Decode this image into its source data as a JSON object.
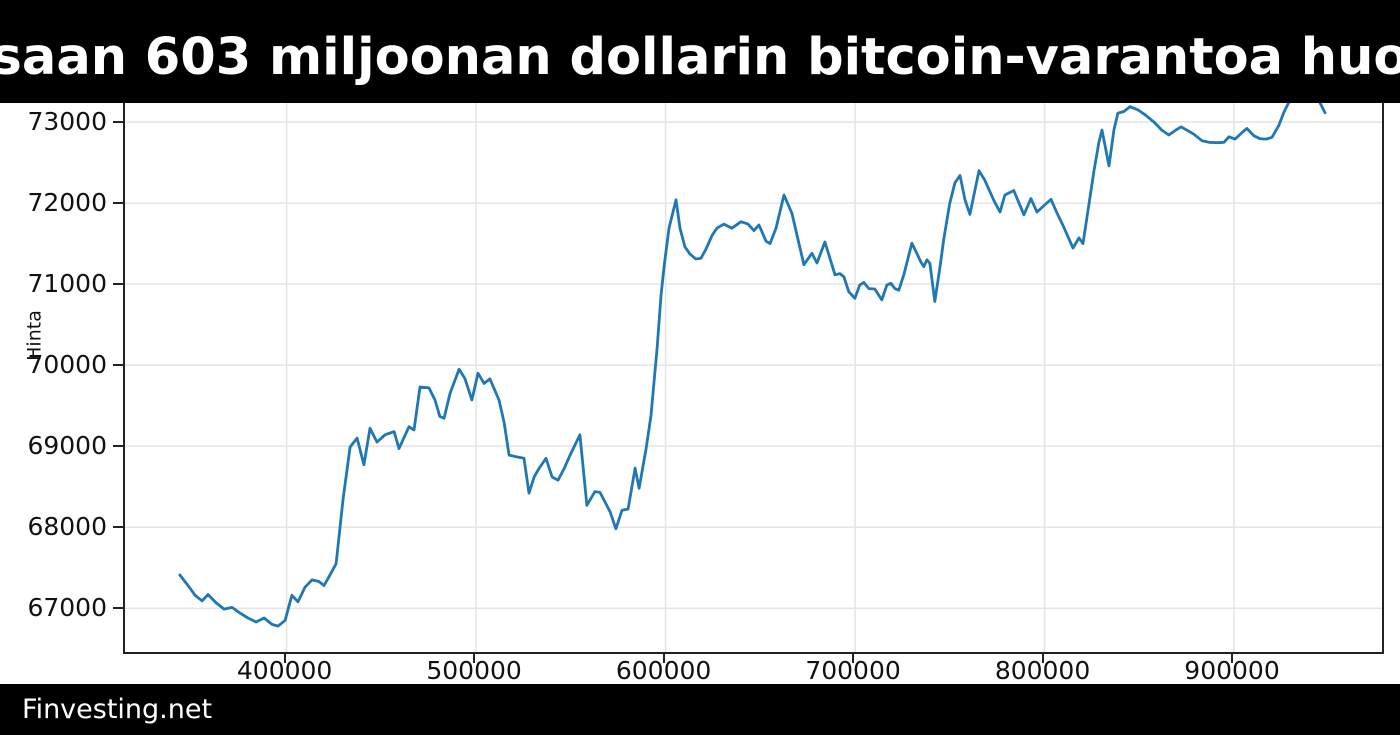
{
  "header": {
    "title": "saan 603 miljoonan dollarin bitcoin-varantoa huo",
    "bg_color": "#000000",
    "text_color": "#ffffff"
  },
  "footer": {
    "brand": "Finvesting.net",
    "bg_color": "#000000",
    "text_color": "#ffffff"
  },
  "chart_data": {
    "type": "line",
    "title": "",
    "xlabel": "",
    "ylabel": "Hinta",
    "grid": true,
    "legend_position": "none",
    "line_color": "#1f77b4",
    "grid_color": "#e4e4e4",
    "axis_color": "#222222",
    "tick_label_color": "#111111",
    "xlim": [
      314700,
      978100
    ],
    "ylim": [
      66460,
      73235
    ],
    "x_ticks": [
      400000,
      500000,
      600000,
      700000,
      800000,
      900000
    ],
    "y_ticks": [
      67000,
      68000,
      69000,
      70000,
      71000,
      72000,
      73000
    ],
    "series": [
      {
        "name": "Hinta",
        "points": [
          [
            343700,
            67410
          ],
          [
            348000,
            67280
          ],
          [
            351700,
            67160
          ],
          [
            355400,
            67090
          ],
          [
            358500,
            67170
          ],
          [
            362700,
            67070
          ],
          [
            367000,
            66990
          ],
          [
            371200,
            67010
          ],
          [
            375400,
            66940
          ],
          [
            379600,
            66880
          ],
          [
            383900,
            66830
          ],
          [
            388100,
            66880
          ],
          [
            392300,
            66800
          ],
          [
            395500,
            66780
          ],
          [
            399200,
            66850
          ],
          [
            402800,
            67160
          ],
          [
            406000,
            67080
          ],
          [
            409700,
            67260
          ],
          [
            413400,
            67350
          ],
          [
            417100,
            67330
          ],
          [
            419700,
            67280
          ],
          [
            422400,
            67390
          ],
          [
            426100,
            67550
          ],
          [
            429800,
            68350
          ],
          [
            433500,
            68990
          ],
          [
            437200,
            69100
          ],
          [
            440800,
            68770
          ],
          [
            444000,
            69220
          ],
          [
            447700,
            69050
          ],
          [
            451900,
            69140
          ],
          [
            456700,
            69180
          ],
          [
            459300,
            68970
          ],
          [
            464600,
            69240
          ],
          [
            467200,
            69200
          ],
          [
            470400,
            69730
          ],
          [
            475100,
            69720
          ],
          [
            478300,
            69570
          ],
          [
            480900,
            69365
          ],
          [
            483100,
            69345
          ],
          [
            486200,
            69650
          ],
          [
            491000,
            69950
          ],
          [
            494100,
            69835
          ],
          [
            497800,
            69570
          ],
          [
            501000,
            69900
          ],
          [
            504200,
            69775
          ],
          [
            507300,
            69830
          ],
          [
            512100,
            69570
          ],
          [
            514700,
            69300
          ],
          [
            517400,
            68890
          ],
          [
            521100,
            68870
          ],
          [
            525300,
            68850
          ],
          [
            527900,
            68420
          ],
          [
            530600,
            68620
          ],
          [
            533200,
            68725
          ],
          [
            536900,
            68850
          ],
          [
            540100,
            68620
          ],
          [
            543200,
            68580
          ],
          [
            546400,
            68720
          ],
          [
            549600,
            68890
          ],
          [
            554800,
            69140
          ],
          [
            558500,
            68270
          ],
          [
            562700,
            68440
          ],
          [
            565400,
            68430
          ],
          [
            570700,
            68190
          ],
          [
            573800,
            67980
          ],
          [
            577000,
            68210
          ],
          [
            580200,
            68225
          ],
          [
            583900,
            68730
          ],
          [
            586000,
            68480
          ],
          [
            589700,
            68970
          ],
          [
            592300,
            69380
          ],
          [
            595500,
            70210
          ],
          [
            597600,
            70860
          ],
          [
            599200,
            71220
          ],
          [
            601800,
            71690
          ],
          [
            605500,
            72040
          ],
          [
            607600,
            71690
          ],
          [
            610200,
            71460
          ],
          [
            612900,
            71370
          ],
          [
            616000,
            71310
          ],
          [
            618700,
            71320
          ],
          [
            621300,
            71430
          ],
          [
            624500,
            71600
          ],
          [
            627100,
            71690
          ],
          [
            630800,
            71740
          ],
          [
            635000,
            71690
          ],
          [
            639800,
            71770
          ],
          [
            643500,
            71740
          ],
          [
            646600,
            71660
          ],
          [
            649300,
            71730
          ],
          [
            653000,
            71530
          ],
          [
            655100,
            71500
          ],
          [
            658300,
            71690
          ],
          [
            662500,
            72100
          ],
          [
            666700,
            71870
          ],
          [
            669900,
            71550
          ],
          [
            673000,
            71240
          ],
          [
            677200,
            71380
          ],
          [
            679900,
            71260
          ],
          [
            684100,
            71520
          ],
          [
            686700,
            71320
          ],
          [
            689400,
            71115
          ],
          [
            692000,
            71130
          ],
          [
            694100,
            71090
          ],
          [
            696700,
            70905
          ],
          [
            699900,
            70825
          ],
          [
            702500,
            70990
          ],
          [
            704600,
            71020
          ],
          [
            707300,
            70945
          ],
          [
            710400,
            70940
          ],
          [
            714100,
            70805
          ],
          [
            716800,
            70990
          ],
          [
            718900,
            71010
          ],
          [
            721000,
            70945
          ],
          [
            723100,
            70925
          ],
          [
            725700,
            71115
          ],
          [
            728400,
            71360
          ],
          [
            730000,
            71505
          ],
          [
            732600,
            71380
          ],
          [
            734700,
            71275
          ],
          [
            736300,
            71215
          ],
          [
            737900,
            71300
          ],
          [
            739500,
            71255
          ],
          [
            742100,
            70785
          ],
          [
            744700,
            71195
          ],
          [
            746900,
            71565
          ],
          [
            750000,
            72000
          ],
          [
            752700,
            72250
          ],
          [
            755400,
            72340
          ],
          [
            758000,
            72040
          ],
          [
            760600,
            71860
          ],
          [
            765400,
            72400
          ],
          [
            768500,
            72280
          ],
          [
            773300,
            72030
          ],
          [
            776500,
            71890
          ],
          [
            779100,
            72100
          ],
          [
            783800,
            72155
          ],
          [
            789100,
            71855
          ],
          [
            792800,
            72055
          ],
          [
            796000,
            71890
          ],
          [
            800700,
            71990
          ],
          [
            803400,
            72045
          ],
          [
            806500,
            71880
          ],
          [
            810200,
            71700
          ],
          [
            815000,
            71445
          ],
          [
            818200,
            71570
          ],
          [
            820300,
            71500
          ],
          [
            822900,
            71900
          ],
          [
            826100,
            72400
          ],
          [
            828700,
            72750
          ],
          [
            830300,
            72900
          ],
          [
            834000,
            72460
          ],
          [
            836600,
            72900
          ],
          [
            838700,
            73110
          ],
          [
            841900,
            73130
          ],
          [
            845100,
            73190
          ],
          [
            849300,
            73150
          ],
          [
            853000,
            73090
          ],
          [
            857700,
            73000
          ],
          [
            861900,
            72900
          ],
          [
            865600,
            72840
          ],
          [
            869300,
            72900
          ],
          [
            872000,
            72940
          ],
          [
            875100,
            72900
          ],
          [
            878800,
            72850
          ],
          [
            883100,
            72770
          ],
          [
            886800,
            72750
          ],
          [
            891000,
            72745
          ],
          [
            894700,
            72750
          ],
          [
            897300,
            72818
          ],
          [
            900500,
            72790
          ],
          [
            904200,
            72870
          ],
          [
            906800,
            72920
          ],
          [
            910500,
            72830
          ],
          [
            913700,
            72795
          ],
          [
            916900,
            72790
          ],
          [
            920000,
            72810
          ],
          [
            923700,
            72960
          ],
          [
            926300,
            73120
          ],
          [
            929000,
            73250
          ],
          [
            932100,
            73360
          ],
          [
            935800,
            73430
          ],
          [
            939500,
            73430
          ],
          [
            942700,
            73340
          ],
          [
            945300,
            73240
          ],
          [
            948000,
            73115
          ]
        ]
      }
    ]
  }
}
